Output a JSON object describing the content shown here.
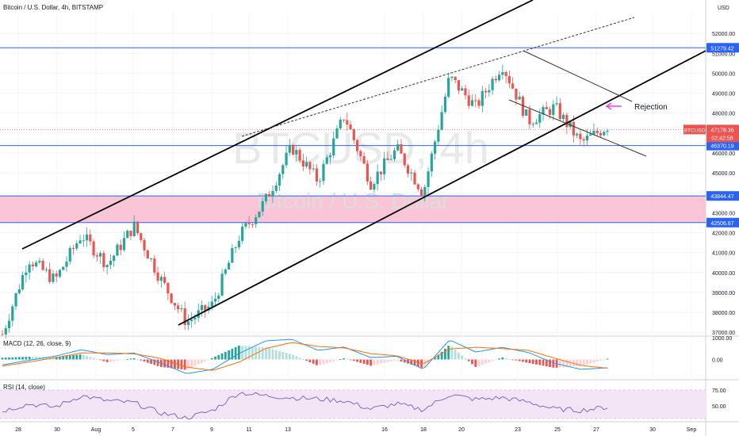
{
  "chart_data": {
    "type": "candlestick",
    "header": {
      "title": "Bitcoin / U.S. Dollar, 4h, BITSTAMP",
      "currency": "USD"
    },
    "watermark": {
      "symbol": "BTCUSD, 4h",
      "name": "Bitcoin / U.S. Dollar"
    },
    "x_ticks": [
      "28",
      "30",
      "Aug",
      "5",
      "7",
      "9",
      "11",
      "13",
      "16",
      "18",
      "20",
      "23",
      "25",
      "27",
      "30",
      "Sep"
    ],
    "y_ticks": [
      {
        "value": 37000,
        "label": "37000.00"
      },
      {
        "value": 38000,
        "label": "38000.00"
      },
      {
        "value": 39000,
        "label": "39000.00"
      },
      {
        "value": 40000,
        "label": "40000.00"
      },
      {
        "value": 41000,
        "label": "41000.00"
      },
      {
        "value": 42000,
        "label": "42000.00"
      },
      {
        "value": 43000,
        "label": "43000.00"
      },
      {
        "value": 44000,
        "label": "44000.00"
      },
      {
        "value": 45000,
        "label": "45000.00"
      },
      {
        "value": 46000,
        "label": "46000.00"
      },
      {
        "value": 47000,
        "label": "47000.00"
      },
      {
        "value": 48000,
        "label": "48000.00"
      },
      {
        "value": 49000,
        "label": "49000.00"
      },
      {
        "value": 50000,
        "label": "50000.00"
      },
      {
        "value": 51000,
        "label": "51000.00"
      },
      {
        "value": 52000,
        "label": "52000.00"
      }
    ],
    "ylim": [
      36850,
      53000
    ],
    "levels": [
      {
        "value": 51279.42,
        "label": "51279.42",
        "color": "#2962ff"
      },
      {
        "value": 46370.19,
        "label": "46370.19",
        "color": "#2962ff"
      },
      {
        "value": 43844.47,
        "label": "43844.47",
        "color": "#2962ff"
      },
      {
        "value": 42506.67,
        "label": "42506.67",
        "color": "#2962ff"
      }
    ],
    "zone": {
      "top": 43844.47,
      "bottom": 42506.67,
      "color": "#f8bbd0"
    },
    "last_price": {
      "symbol": "BTCUSD",
      "value": "47178.36",
      "countdown": "02:42:58",
      "color": "#ef5350"
    },
    "annotation": {
      "text": "Rejection",
      "arrow_color": "#e040fb"
    },
    "candles": {
      "up_color": "#26a69a",
      "down_color": "#ef5350",
      "anchors": [
        36900,
        40700,
        39600,
        41900,
        40400,
        42350,
        39700,
        37500,
        38400,
        41800,
        43600,
        46300,
        44600,
        47900,
        44500,
        46200,
        44000,
        49800,
        48300,
        50450,
        47600,
        48300,
        46500,
        47350
      ]
    },
    "macd": {
      "label": "MACD (12, 26, close, 9)",
      "y_ticks": [
        {
          "value": 0,
          "label": "0.00"
        },
        {
          "value": 1000,
          "label": "1000.00"
        }
      ],
      "macd_color": "#2196f3",
      "signal_color": "#ff6d00",
      "macd_anchors": [
        -250,
        -40,
        150,
        450,
        220,
        300,
        -150,
        -650,
        -450,
        280,
        850,
        930,
        420,
        570,
        90,
        150,
        -450,
        900,
        340,
        560,
        320,
        -180,
        -450,
        -380
      ],
      "signal_anchors": [
        -300,
        -120,
        80,
        300,
        300,
        260,
        60,
        -350,
        -500,
        -120,
        500,
        780,
        600,
        530,
        270,
        170,
        -200,
        480,
        560,
        500,
        420,
        60,
        -270,
        -400
      ]
    },
    "rsi": {
      "label": "RSI (14, close)",
      "y_ticks": [
        {
          "value": 50,
          "label": "50.00"
        },
        {
          "value": 75,
          "label": "75.00"
        }
      ],
      "line_color": "#7e57c2",
      "band_color": "#f3e5f5",
      "anchors": [
        42,
        53,
        48,
        66,
        58,
        55,
        39,
        31,
        43,
        71,
        66,
        63,
        61,
        58,
        45,
        53,
        44,
        68,
        60,
        63,
        56,
        45,
        43,
        48
      ]
    }
  }
}
